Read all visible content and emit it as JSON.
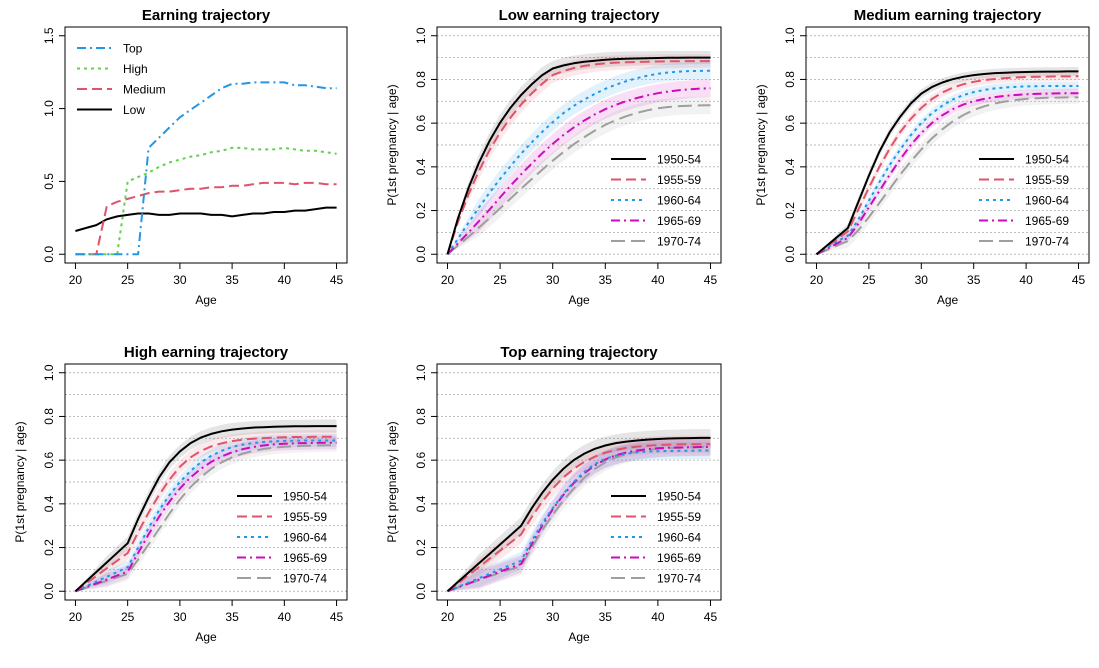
{
  "colors": {
    "1950-54": "#000000",
    "1955-59": "#df536b",
    "1960-64": "#2297e6",
    "1965-69": "#cd0bbc",
    "1970-74": "#9e9e9e",
    "Top": "#2297e6",
    "High": "#61d04f",
    "Medium": "#df536b",
    "Low": "#000000"
  },
  "chart_data": [
    {
      "type": "line",
      "title": "Earning trajectory",
      "xlabel": "Age",
      "ylabel": "",
      "xlim": [
        20,
        45
      ],
      "ylim": [
        0,
        1.5
      ],
      "xticks": [
        "20",
        "25",
        "30",
        "35",
        "40",
        "45"
      ],
      "yticks": [
        "0.0",
        "0.5",
        "1.0",
        "1.5"
      ],
      "grid": false,
      "legend": "top-left",
      "x": [
        20,
        21,
        22,
        23,
        24,
        25,
        26,
        27,
        28,
        29,
        30,
        31,
        32,
        33,
        34,
        35,
        36,
        37,
        38,
        39,
        40,
        41,
        42,
        43,
        44,
        45
      ],
      "series": [
        {
          "name": "Top",
          "values": [
            0,
            0,
            0,
            0,
            0,
            0,
            0,
            0.73,
            0.8,
            0.87,
            0.94,
            0.99,
            1.04,
            1.09,
            1.14,
            1.17,
            1.17,
            1.18,
            1.18,
            1.18,
            1.18,
            1.16,
            1.16,
            1.15,
            1.14,
            1.14
          ]
        },
        {
          "name": "High",
          "values": [
            0,
            0,
            0,
            0,
            0,
            0.5,
            0.53,
            0.56,
            0.6,
            0.63,
            0.65,
            0.67,
            0.68,
            0.7,
            0.71,
            0.73,
            0.73,
            0.72,
            0.72,
            0.72,
            0.73,
            0.72,
            0.71,
            0.71,
            0.7,
            0.69
          ]
        },
        {
          "name": "Medium",
          "values": [
            0,
            0,
            0,
            0.33,
            0.36,
            0.38,
            0.4,
            0.42,
            0.43,
            0.43,
            0.44,
            0.45,
            0.45,
            0.46,
            0.46,
            0.47,
            0.47,
            0.48,
            0.49,
            0.49,
            0.49,
            0.48,
            0.49,
            0.49,
            0.48,
            0.48
          ]
        },
        {
          "name": "Low",
          "values": [
            0.16,
            0.18,
            0.2,
            0.24,
            0.26,
            0.27,
            0.28,
            0.28,
            0.27,
            0.27,
            0.28,
            0.28,
            0.28,
            0.27,
            0.27,
            0.26,
            0.27,
            0.28,
            0.28,
            0.29,
            0.29,
            0.3,
            0.3,
            0.31,
            0.32,
            0.32
          ]
        }
      ]
    },
    {
      "type": "line",
      "title": "Low earning trajectory",
      "xlabel": "Age",
      "ylabel": "P(1st pregnancy | age)",
      "xlim": [
        20,
        45
      ],
      "ylim": [
        0,
        1
      ],
      "xticks": [
        "20",
        "25",
        "30",
        "35",
        "40",
        "45"
      ],
      "yticks": [
        "0.0",
        "0.2",
        "0.4",
        "0.6",
        "0.8",
        "1.0"
      ],
      "grid": true,
      "legend": "bottom-right",
      "x": [
        20,
        21,
        22,
        23,
        24,
        25,
        26,
        27,
        28,
        29,
        30,
        31,
        32,
        33,
        34,
        35,
        36,
        37,
        38,
        39,
        40,
        41,
        42,
        43,
        44,
        45
      ],
      "series": [
        {
          "name": "1950-54",
          "values": [
            0,
            0.165,
            0.304,
            0.421,
            0.519,
            0.602,
            0.671,
            0.729,
            0.778,
            0.82,
            0.85,
            0.864,
            0.874,
            0.881,
            0.886,
            0.89,
            0.893,
            0.895,
            0.896,
            0.897,
            0.898,
            0.899,
            0.899,
            0.9,
            0.9,
            0.9
          ],
          "band": [
            0.04,
            0.03
          ]
        },
        {
          "name": "1955-59",
          "values": [
            0,
            0.148,
            0.275,
            0.383,
            0.476,
            0.557,
            0.626,
            0.685,
            0.736,
            0.78,
            0.82,
            0.838,
            0.852,
            0.862,
            0.869,
            0.874,
            0.877,
            0.879,
            0.88,
            0.881,
            0.882,
            0.883,
            0.883,
            0.884,
            0.884,
            0.884
          ],
          "band": [
            0.04,
            0.03
          ]
        },
        {
          "name": "1960-64",
          "values": [
            0,
            0.072,
            0.145,
            0.215,
            0.282,
            0.345,
            0.404,
            0.46,
            0.512,
            0.56,
            0.605,
            0.645,
            0.679,
            0.708,
            0.734,
            0.757,
            0.776,
            0.792,
            0.806,
            0.817,
            0.826,
            0.832,
            0.836,
            0.838,
            0.839,
            0.84
          ],
          "band": [
            0.04,
            0.04
          ]
        },
        {
          "name": "1965-69",
          "values": [
            0,
            0.05,
            0.1,
            0.152,
            0.205,
            0.26,
            0.314,
            0.366,
            0.415,
            0.462,
            0.505,
            0.545,
            0.58,
            0.612,
            0.64,
            0.664,
            0.684,
            0.701,
            0.715,
            0.727,
            0.737,
            0.745,
            0.751,
            0.755,
            0.758,
            0.76
          ],
          "band": [
            0.05,
            0.04
          ]
        },
        {
          "name": "1970-74",
          "values": [
            0,
            0.04,
            0.081,
            0.123,
            0.166,
            0.21,
            0.255,
            0.3,
            0.344,
            0.387,
            0.428,
            0.467,
            0.503,
            0.536,
            0.566,
            0.592,
            0.614,
            0.632,
            0.647,
            0.659,
            0.668,
            0.674,
            0.678,
            0.68,
            0.681,
            0.682
          ],
          "band": [
            0.04,
            0.04
          ]
        }
      ]
    },
    {
      "type": "line",
      "title": "Medium earning trajectory",
      "xlabel": "Age",
      "ylabel": "P(1st pregnancy | age)",
      "xlim": [
        20,
        45
      ],
      "ylim": [
        0,
        1
      ],
      "xticks": [
        "20",
        "25",
        "30",
        "35",
        "40",
        "45"
      ],
      "yticks": [
        "0.0",
        "0.2",
        "0.4",
        "0.6",
        "0.8",
        "1.0"
      ],
      "grid": true,
      "legend": "bottom-right",
      "x": [
        20,
        21,
        22,
        23,
        24,
        25,
        26,
        27,
        28,
        29,
        30,
        31,
        32,
        33,
        34,
        35,
        36,
        37,
        38,
        39,
        40,
        41,
        42,
        43,
        44,
        45
      ],
      "series": [
        {
          "name": "1950-54",
          "values": [
            0,
            0.04,
            0.08,
            0.12,
            0.24,
            0.36,
            0.47,
            0.56,
            0.63,
            0.69,
            0.735,
            0.765,
            0.786,
            0.801,
            0.812,
            0.82,
            0.825,
            0.829,
            0.831,
            0.833,
            0.834,
            0.835,
            0.836,
            0.836,
            0.837,
            0.837
          ],
          "band": [
            0.02,
            0.02
          ]
        },
        {
          "name": "1955-59",
          "values": [
            0,
            0.035,
            0.07,
            0.105,
            0.205,
            0.305,
            0.4,
            0.485,
            0.56,
            0.62,
            0.67,
            0.71,
            0.74,
            0.762,
            0.778,
            0.789,
            0.797,
            0.802,
            0.806,
            0.809,
            0.811,
            0.812,
            0.813,
            0.814,
            0.814,
            0.815
          ],
          "band": [
            0.02,
            0.02
          ]
        },
        {
          "name": "1960-64",
          "values": [
            0,
            0.03,
            0.06,
            0.085,
            0.16,
            0.245,
            0.33,
            0.41,
            0.48,
            0.545,
            0.6,
            0.645,
            0.68,
            0.708,
            0.728,
            0.742,
            0.752,
            0.759,
            0.763,
            0.766,
            0.768,
            0.769,
            0.77,
            0.77,
            0.77,
            0.77
          ],
          "band": [
            0.02,
            0.02
          ]
        },
        {
          "name": "1965-69",
          "values": [
            0,
            0.025,
            0.05,
            0.075,
            0.14,
            0.215,
            0.29,
            0.365,
            0.435,
            0.5,
            0.555,
            0.6,
            0.636,
            0.664,
            0.685,
            0.7,
            0.711,
            0.719,
            0.725,
            0.729,
            0.732,
            0.734,
            0.735,
            0.736,
            0.737,
            0.737
          ],
          "band": [
            0.02,
            0.02
          ]
        },
        {
          "name": "1970-74",
          "values": [
            0,
            0.02,
            0.04,
            0.06,
            0.11,
            0.17,
            0.235,
            0.3,
            0.365,
            0.425,
            0.48,
            0.53,
            0.572,
            0.608,
            0.637,
            0.66,
            0.677,
            0.69,
            0.699,
            0.706,
            0.711,
            0.714,
            0.716,
            0.717,
            0.718,
            0.718
          ],
          "band": [
            0.03,
            0.03
          ]
        }
      ]
    },
    {
      "type": "line",
      "title": "High earning trajectory",
      "xlabel": "Age",
      "ylabel": "P(1st pregnancy | age)",
      "xlim": [
        20,
        45
      ],
      "ylim": [
        0,
        1
      ],
      "xticks": [
        "20",
        "25",
        "30",
        "35",
        "40",
        "45"
      ],
      "yticks": [
        "0.0",
        "0.2",
        "0.4",
        "0.6",
        "0.8",
        "1.0"
      ],
      "grid": true,
      "legend": "bottom-right",
      "x": [
        20,
        21,
        22,
        23,
        24,
        25,
        26,
        27,
        28,
        29,
        30,
        31,
        32,
        33,
        34,
        35,
        36,
        37,
        38,
        39,
        40,
        41,
        42,
        43,
        44,
        45
      ],
      "series": [
        {
          "name": "1950-54",
          "values": [
            0,
            0.044,
            0.088,
            0.132,
            0.176,
            0.22,
            0.33,
            0.43,
            0.52,
            0.59,
            0.64,
            0.677,
            0.703,
            0.72,
            0.732,
            0.74,
            0.745,
            0.749,
            0.751,
            0.753,
            0.754,
            0.755,
            0.755,
            0.756,
            0.756,
            0.756
          ],
          "band": [
            0.03,
            0.03
          ]
        },
        {
          "name": "1955-59",
          "values": [
            0,
            0.035,
            0.07,
            0.105,
            0.14,
            0.175,
            0.27,
            0.36,
            0.44,
            0.51,
            0.57,
            0.612,
            0.642,
            0.663,
            0.677,
            0.687,
            0.694,
            0.698,
            0.701,
            0.703,
            0.705,
            0.706,
            0.706,
            0.707,
            0.707,
            0.707
          ],
          "band": [
            0.03,
            0.03
          ]
        },
        {
          "name": "1960-64",
          "values": [
            0,
            0.022,
            0.044,
            0.066,
            0.088,
            0.11,
            0.2,
            0.29,
            0.37,
            0.44,
            0.5,
            0.55,
            0.59,
            0.62,
            0.643,
            0.66,
            0.671,
            0.678,
            0.683,
            0.686,
            0.688,
            0.689,
            0.69,
            0.69,
            0.69,
            0.69
          ],
          "band": [
            0.03,
            0.03
          ]
        },
        {
          "name": "1965-69",
          "values": [
            0,
            0.018,
            0.036,
            0.054,
            0.072,
            0.09,
            0.175,
            0.26,
            0.34,
            0.41,
            0.47,
            0.52,
            0.56,
            0.592,
            0.617,
            0.636,
            0.65,
            0.66,
            0.667,
            0.672,
            0.675,
            0.677,
            0.678,
            0.679,
            0.68,
            0.68
          ],
          "band": [
            0.03,
            0.03
          ]
        },
        {
          "name": "1970-74",
          "values": [
            0,
            0.016,
            0.032,
            0.048,
            0.064,
            0.08,
            0.145,
            0.215,
            0.285,
            0.355,
            0.42,
            0.476,
            0.522,
            0.56,
            0.59,
            0.613,
            0.63,
            0.642,
            0.651,
            0.657,
            0.661,
            0.664,
            0.666,
            0.667,
            0.668,
            0.668
          ],
          "band": [
            0.03,
            0.03
          ]
        }
      ]
    },
    {
      "type": "line",
      "title": "Top earning trajectory",
      "xlabel": "Age",
      "ylabel": "P(1st pregnancy | age)",
      "xlim": [
        20,
        45
      ],
      "ylim": [
        0,
        1
      ],
      "xticks": [
        "20",
        "25",
        "30",
        "35",
        "40",
        "45"
      ],
      "yticks": [
        "0.0",
        "0.2",
        "0.4",
        "0.6",
        "0.8",
        "1.0"
      ],
      "grid": true,
      "legend": "bottom-right",
      "x": [
        20,
        21,
        22,
        23,
        24,
        25,
        26,
        27,
        28,
        29,
        30,
        31,
        32,
        33,
        34,
        35,
        36,
        37,
        38,
        39,
        40,
        41,
        42,
        43,
        44,
        45
      ],
      "series": [
        {
          "name": "1950-54",
          "values": [
            0,
            0.043,
            0.086,
            0.129,
            0.171,
            0.214,
            0.257,
            0.3,
            0.38,
            0.45,
            0.51,
            0.56,
            0.6,
            0.63,
            0.652,
            0.667,
            0.678,
            0.685,
            0.69,
            0.694,
            0.697,
            0.699,
            0.7,
            0.701,
            0.702,
            0.702
          ],
          "band": [
            0.04,
            0.04
          ]
        },
        {
          "name": "1955-59",
          "values": [
            0,
            0.037,
            0.074,
            0.111,
            0.149,
            0.186,
            0.223,
            0.26,
            0.34,
            0.41,
            0.47,
            0.52,
            0.56,
            0.592,
            0.616,
            0.634,
            0.647,
            0.656,
            0.662,
            0.666,
            0.669,
            0.671,
            0.672,
            0.673,
            0.673,
            0.673
          ],
          "band": [
            0.04,
            0.04
          ]
        },
        {
          "name": "1960-64",
          "values": [
            0,
            0.02,
            0.04,
            0.06,
            0.08,
            0.1,
            0.12,
            0.14,
            0.23,
            0.31,
            0.38,
            0.445,
            0.5,
            0.546,
            0.582,
            0.606,
            0.621,
            0.63,
            0.636,
            0.639,
            0.641,
            0.642,
            0.643,
            0.643,
            0.644,
            0.644
          ],
          "band": [
            0.04,
            0.04
          ]
        },
        {
          "name": "1965-69",
          "values": [
            0,
            0.018,
            0.036,
            0.054,
            0.072,
            0.09,
            0.108,
            0.125,
            0.215,
            0.3,
            0.375,
            0.44,
            0.495,
            0.54,
            0.576,
            0.603,
            0.622,
            0.635,
            0.644,
            0.65,
            0.654,
            0.657,
            0.658,
            0.659,
            0.66,
            0.66
          ],
          "band": [
            0.04,
            0.04
          ]
        },
        {
          "name": "1970-74",
          "values": [
            0,
            0.017,
            0.034,
            0.051,
            0.068,
            0.085,
            0.1,
            0.115,
            0.2,
            0.28,
            0.35,
            0.415,
            0.47,
            0.52,
            0.56,
            0.59,
            0.612,
            0.628,
            0.639,
            0.647,
            0.652,
            0.655,
            0.657,
            0.658,
            0.659,
            0.66
          ],
          "band": [
            0.04,
            0.04
          ]
        }
      ]
    }
  ]
}
